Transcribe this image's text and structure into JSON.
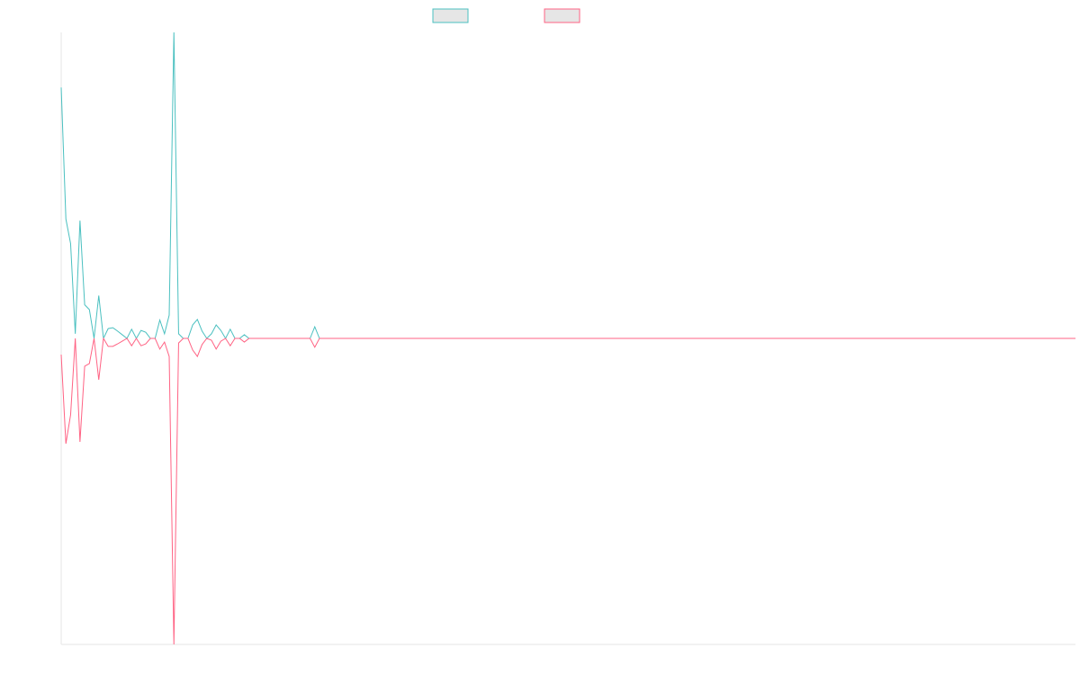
{
  "chart_data": {
    "type": "line",
    "categories": [
      null,
      null,
      null,
      null,
      null,
      null,
      null,
      null,
      null,
      null,
      null,
      null,
      null,
      null,
      null,
      null,
      null,
      null,
      null,
      null,
      null,
      null,
      null,
      null,
      null,
      null,
      null,
      null,
      null,
      null,
      null,
      null,
      null,
      null,
      null,
      null,
      null,
      null,
      null,
      null,
      null,
      null,
      null,
      null,
      null,
      null,
      null,
      null,
      null,
      null,
      null,
      null,
      null,
      null,
      null,
      null,
      null,
      null,
      null,
      null,
      null,
      null,
      null,
      null,
      null,
      null,
      null,
      null,
      null,
      null,
      null,
      null,
      null,
      null,
      null,
      null,
      null,
      null,
      null,
      null,
      null,
      null,
      null,
      null,
      null,
      null,
      null,
      null,
      null,
      null,
      null,
      null,
      null,
      null,
      null,
      null,
      null,
      null,
      null,
      null,
      null,
      null,
      null,
      null,
      null,
      null,
      null,
      null,
      null,
      null,
      null,
      null,
      null,
      null,
      null,
      null,
      null,
      null,
      null,
      null,
      null,
      null,
      null,
      null,
      null,
      null,
      null,
      null,
      null,
      null,
      null,
      null,
      null,
      null,
      null,
      null,
      null,
      null,
      null,
      null,
      null,
      null,
      null,
      null,
      null,
      null,
      null,
      null,
      null,
      null,
      null,
      null,
      null,
      null,
      null,
      null,
      null,
      null,
      null,
      null,
      null,
      null,
      null,
      null,
      null,
      null,
      null,
      null,
      null,
      null,
      null,
      null,
      null,
      null,
      null,
      null,
      null,
      null,
      null,
      null,
      null,
      null,
      null,
      null,
      null,
      null,
      null,
      null,
      null,
      null,
      null,
      null,
      null,
      null,
      null,
      null,
      null,
      null,
      null,
      null,
      null,
      null,
      null,
      null,
      null,
      null,
      null,
      null,
      null,
      null,
      null,
      null,
      null,
      null,
      null,
      null,
      null
    ],
    "series": [
      {
        "color": "#4bc0c0",
        "values": [
          82,
          39,
          31,
          1.5,
          38.5,
          11,
          9.4,
          0,
          14,
          0,
          3.2,
          3.5,
          2.4,
          1.2,
          0,
          3,
          0,
          2.6,
          2,
          0,
          0,
          6,
          1.5,
          7.6,
          100,
          1.5,
          0,
          0,
          4.4,
          6.2,
          2.4,
          0,
          1.5,
          4.4,
          2.6,
          0,
          3,
          0,
          0,
          1.2,
          0,
          0,
          0,
          0,
          0,
          0,
          0,
          0,
          0,
          0,
          0,
          0,
          0,
          0,
          3.8,
          0,
          0,
          0,
          0,
          0,
          0,
          0,
          0,
          0,
          0,
          0,
          0,
          0,
          0,
          0,
          0,
          0,
          0,
          0,
          0,
          0,
          0,
          0,
          0,
          0,
          0,
          0,
          0,
          0,
          0,
          0,
          0,
          0,
          0,
          0,
          0,
          0,
          0,
          0,
          0,
          0,
          0,
          0,
          0,
          0,
          0,
          0,
          0,
          0,
          0,
          0,
          0,
          0,
          0,
          0,
          0,
          0,
          0,
          0,
          0,
          0,
          0,
          0,
          0,
          0,
          0,
          0,
          0,
          0,
          0,
          0,
          0,
          0,
          0,
          0,
          0,
          0,
          0,
          0,
          0,
          0,
          0,
          0,
          0,
          0,
          0,
          0,
          0,
          0,
          0,
          0,
          0,
          0,
          0,
          0,
          0,
          0,
          0,
          0,
          0,
          0,
          0,
          0,
          0,
          0,
          0,
          0,
          0,
          0,
          0,
          0,
          0,
          0,
          0,
          0,
          0,
          0,
          0,
          0,
          0,
          0,
          0,
          0,
          0,
          0,
          0,
          0,
          0,
          0,
          0,
          0,
          0,
          0,
          0,
          0,
          0,
          0,
          0,
          0,
          0,
          0,
          0,
          0,
          0,
          0,
          0,
          0,
          0,
          0,
          0,
          0,
          0,
          0,
          0,
          0,
          0,
          0,
          0,
          0,
          0,
          0,
          0
        ]
      },
      {
        "color": "#ff6384",
        "values": [
          -5.3,
          -34.4,
          -25,
          0,
          -33.8,
          -9.1,
          -8.2,
          0,
          -13.5,
          0,
          -2.6,
          -2.6,
          -1.8,
          -0.9,
          0,
          -2.4,
          0,
          -2.4,
          -1.8,
          0,
          0,
          -3.5,
          -1.2,
          -5.9,
          -100,
          -1.5,
          0,
          0,
          -3.8,
          -5.9,
          -2,
          0,
          -0.6,
          -3.5,
          -0.9,
          0,
          -2.4,
          0,
          0,
          -1.2,
          0,
          0,
          0,
          0,
          0,
          0,
          0,
          0,
          0,
          0,
          0,
          0,
          0,
          0,
          -2.9,
          0,
          0,
          0,
          0,
          0,
          0,
          0,
          0,
          0,
          0,
          0,
          0,
          0,
          0,
          0,
          0,
          0,
          0,
          0,
          0,
          0,
          0,
          0,
          0,
          0,
          0,
          0,
          0,
          0,
          0,
          0,
          0,
          0,
          0,
          0,
          0,
          0,
          0,
          0,
          0,
          0,
          0,
          0,
          0,
          0,
          0,
          0,
          0,
          0,
          0,
          0,
          0,
          0,
          0,
          0,
          0,
          0,
          0,
          0,
          0,
          0,
          0,
          0,
          0,
          0,
          0,
          0,
          0,
          0,
          0,
          0,
          0,
          0,
          0,
          0,
          0,
          0,
          0,
          0,
          0,
          0,
          0,
          0,
          0,
          0,
          0,
          0,
          0,
          0,
          0,
          0,
          0,
          0,
          0,
          0,
          0,
          0,
          0,
          0,
          0,
          0,
          0,
          0,
          0,
          0,
          0,
          0,
          0,
          0,
          0,
          0,
          0,
          0,
          0,
          0,
          0,
          0,
          0,
          0,
          0,
          0,
          0,
          0,
          0,
          0,
          0,
          0,
          0,
          0,
          0,
          0,
          0,
          0,
          0,
          0,
          0,
          0,
          0,
          0,
          0,
          0,
          0,
          0,
          0,
          0,
          0,
          0,
          0,
          0,
          0,
          0,
          0,
          0,
          0,
          0,
          0,
          0,
          0,
          0,
          0,
          0,
          0
        ]
      }
    ],
    "ylim": [
      -100,
      100
    ]
  }
}
